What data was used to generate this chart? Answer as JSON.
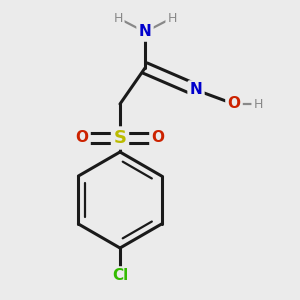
{
  "background_color": "#ebebeb",
  "bond_color": "#1a1a1a",
  "bond_width": 2.2,
  "figsize": [
    3.0,
    3.0
  ],
  "dpi": 100,
  "colors": {
    "N": "#0000cc",
    "O": "#cc2200",
    "S": "#bbbb00",
    "Cl": "#33bb00",
    "H": "#888888",
    "C": "#1a1a1a"
  }
}
